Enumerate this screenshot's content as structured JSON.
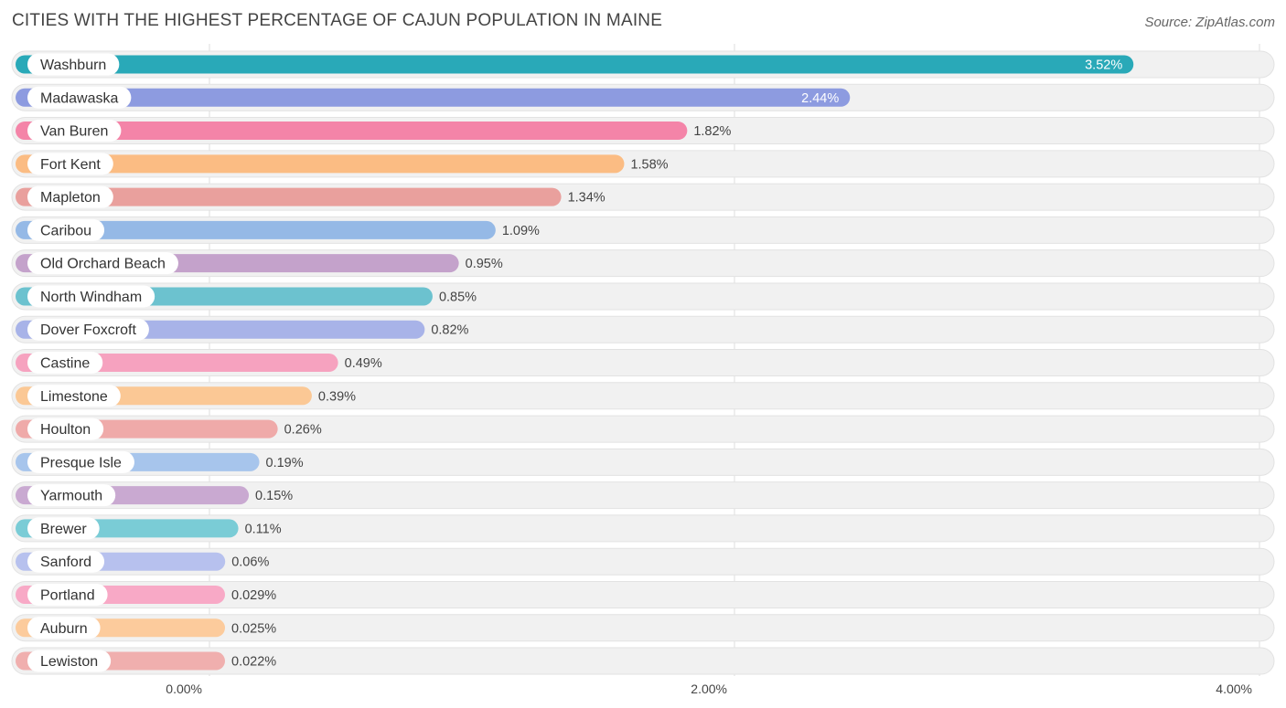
{
  "header": {
    "title": "CITIES WITH THE HIGHEST PERCENTAGE OF CAJUN POPULATION IN MAINE",
    "source": "Source: ZipAtlas.com"
  },
  "chart_data": {
    "type": "bar",
    "orientation": "horizontal",
    "categories": [
      "Washburn",
      "Madawaska",
      "Van Buren",
      "Fort Kent",
      "Mapleton",
      "Caribou",
      "Old Orchard Beach",
      "North Windham",
      "Dover Foxcroft",
      "Castine",
      "Limestone",
      "Houlton",
      "Presque Isle",
      "Yarmouth",
      "Brewer",
      "Sanford",
      "Portland",
      "Auburn",
      "Lewiston"
    ],
    "values": [
      3.52,
      2.44,
      1.82,
      1.58,
      1.34,
      1.09,
      0.95,
      0.85,
      0.82,
      0.49,
      0.39,
      0.26,
      0.19,
      0.15,
      0.11,
      0.06,
      0.029,
      0.025,
      0.022
    ],
    "value_labels": [
      "3.52%",
      "2.44%",
      "1.82%",
      "1.58%",
      "1.34%",
      "1.09%",
      "0.95%",
      "0.85%",
      "0.82%",
      "0.49%",
      "0.39%",
      "0.26%",
      "0.19%",
      "0.15%",
      "0.11%",
      "0.06%",
      "0.029%",
      "0.025%",
      "0.022%"
    ],
    "colors": [
      "#29a9b8",
      "#8d9be0",
      "#f484a8",
      "#fbbc83",
      "#e9a09d",
      "#95b9e6",
      "#c4a2cb",
      "#6cc2cf",
      "#a8b3e8",
      "#f6a2bf",
      "#fbc895",
      "#efaaa9",
      "#a7c5ec",
      "#c9a9d1",
      "#7accd6",
      "#b7c1ee",
      "#f8a9c6",
      "#fccb9c",
      "#f0afae"
    ],
    "xlim": [
      0,
      4
    ],
    "x_ticks": [
      {
        "value": 0,
        "label": "0.00%"
      },
      {
        "value": 2,
        "label": "2.00%"
      },
      {
        "value": 4,
        "label": "4.00%"
      }
    ],
    "xlabel": "",
    "ylabel": "",
    "grid": true
  }
}
